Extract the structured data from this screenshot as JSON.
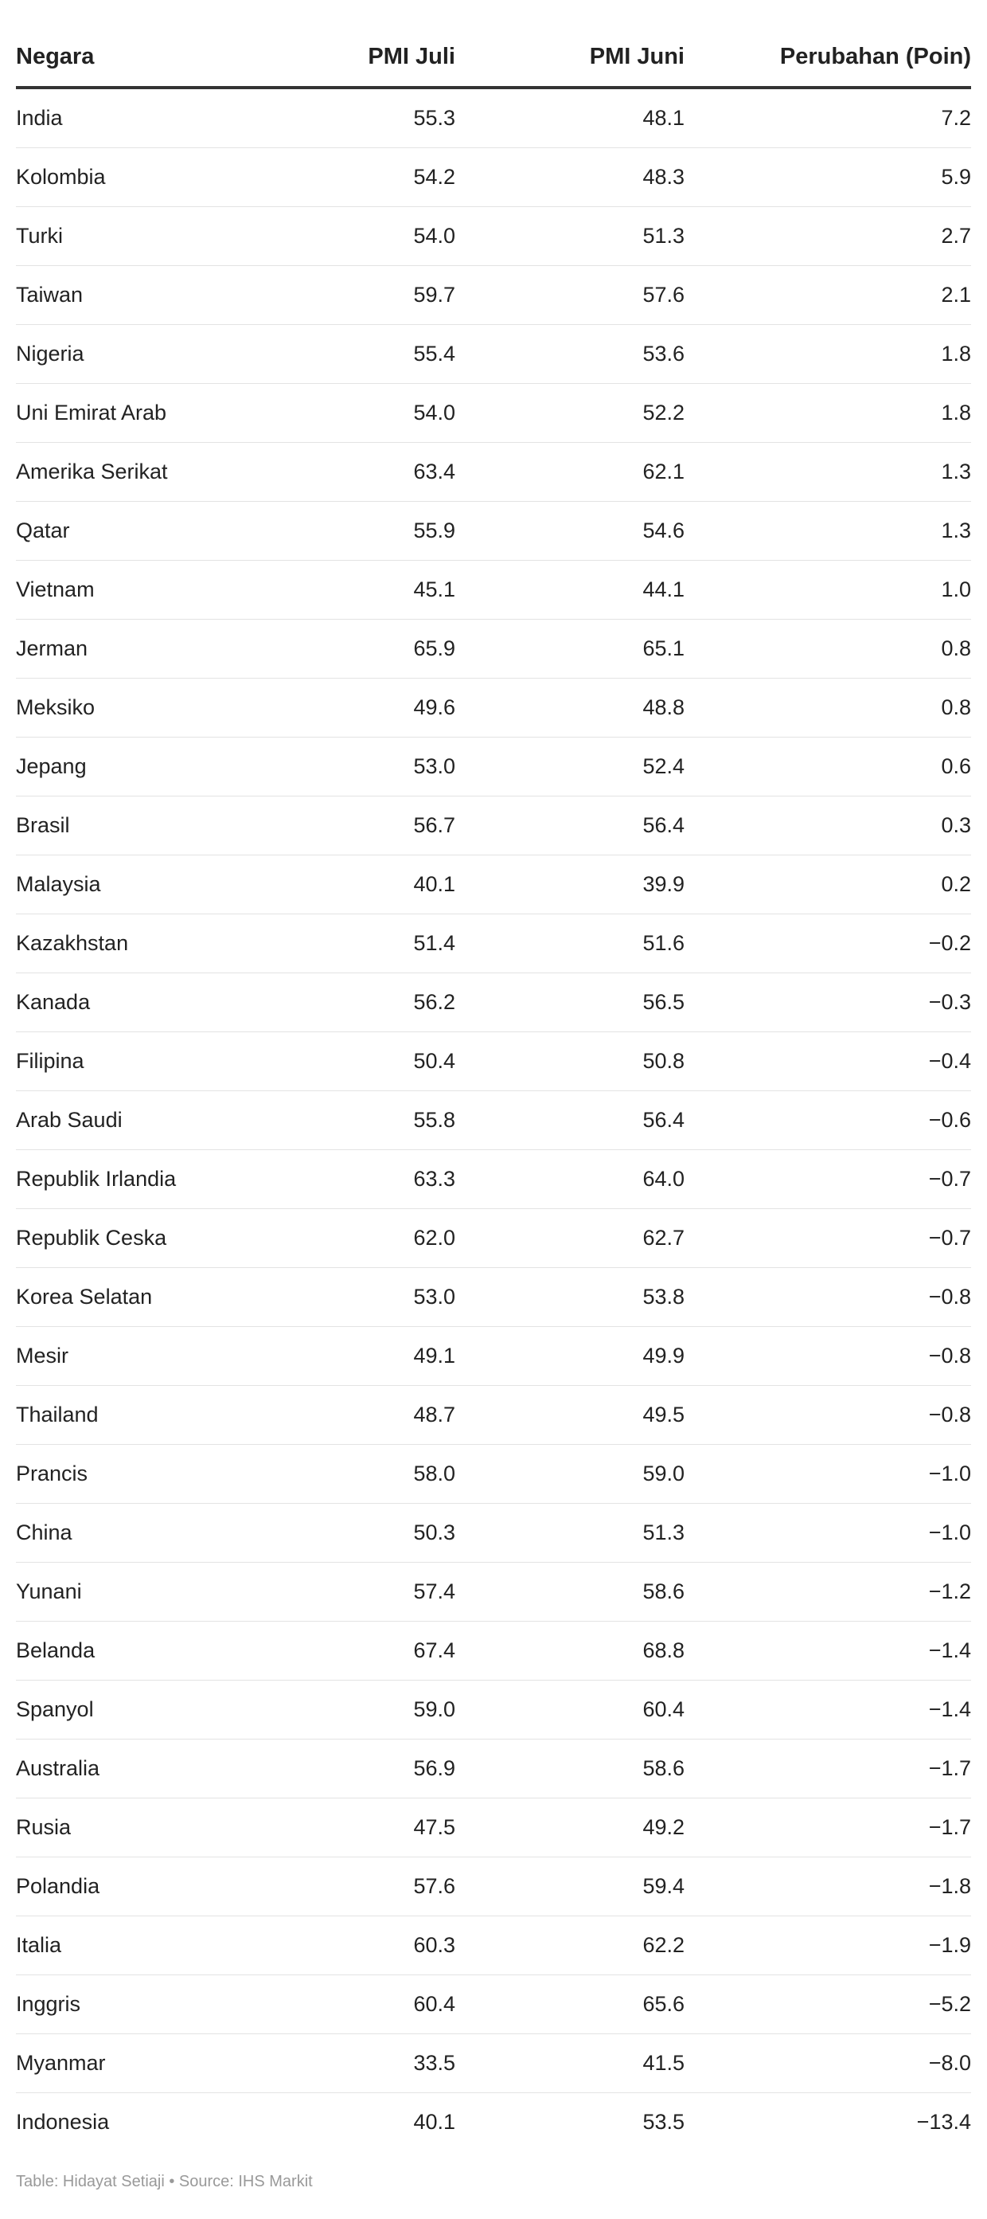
{
  "chart_data": {
    "type": "table",
    "columns": [
      "Negara",
      "PMI Juli",
      "PMI Juni",
      "Perubahan (Poin)"
    ],
    "rows": [
      [
        "India",
        "55.3",
        "48.1",
        "7.2"
      ],
      [
        "Kolombia",
        "54.2",
        "48.3",
        "5.9"
      ],
      [
        "Turki",
        "54.0",
        "51.3",
        "2.7"
      ],
      [
        "Taiwan",
        "59.7",
        "57.6",
        "2.1"
      ],
      [
        "Nigeria",
        "55.4",
        "53.6",
        "1.8"
      ],
      [
        "Uni Emirat Arab",
        "54.0",
        "52.2",
        "1.8"
      ],
      [
        "Amerika Serikat",
        "63.4",
        "62.1",
        "1.3"
      ],
      [
        "Qatar",
        "55.9",
        "54.6",
        "1.3"
      ],
      [
        "Vietnam",
        "45.1",
        "44.1",
        "1.0"
      ],
      [
        "Jerman",
        "65.9",
        "65.1",
        "0.8"
      ],
      [
        "Meksiko",
        "49.6",
        "48.8",
        "0.8"
      ],
      [
        "Jepang",
        "53.0",
        "52.4",
        "0.6"
      ],
      [
        "Brasil",
        "56.7",
        "56.4",
        "0.3"
      ],
      [
        "Malaysia",
        "40.1",
        "39.9",
        "0.2"
      ],
      [
        "Kazakhstan",
        "51.4",
        "51.6",
        "−0.2"
      ],
      [
        "Kanada",
        "56.2",
        "56.5",
        "−0.3"
      ],
      [
        "Filipina",
        "50.4",
        "50.8",
        "−0.4"
      ],
      [
        "Arab Saudi",
        "55.8",
        "56.4",
        "−0.6"
      ],
      [
        "Republik Irlandia",
        "63.3",
        "64.0",
        "−0.7"
      ],
      [
        "Republik Ceska",
        "62.0",
        "62.7",
        "−0.7"
      ],
      [
        "Korea Selatan",
        "53.0",
        "53.8",
        "−0.8"
      ],
      [
        "Mesir",
        "49.1",
        "49.9",
        "−0.8"
      ],
      [
        "Thailand",
        "48.7",
        "49.5",
        "−0.8"
      ],
      [
        "Prancis",
        "58.0",
        "59.0",
        "−1.0"
      ],
      [
        "China",
        "50.3",
        "51.3",
        "−1.0"
      ],
      [
        "Yunani",
        "57.4",
        "58.6",
        "−1.2"
      ],
      [
        "Belanda",
        "67.4",
        "68.8",
        "−1.4"
      ],
      [
        "Spanyol",
        "59.0",
        "60.4",
        "−1.4"
      ],
      [
        "Australia",
        "56.9",
        "58.6",
        "−1.7"
      ],
      [
        "Rusia",
        "47.5",
        "49.2",
        "−1.7"
      ],
      [
        "Polandia",
        "57.6",
        "59.4",
        "−1.8"
      ],
      [
        "Italia",
        "60.3",
        "62.2",
        "−1.9"
      ],
      [
        "Inggris",
        "60.4",
        "65.6",
        "−5.2"
      ],
      [
        "Myanmar",
        "33.5",
        "41.5",
        "−8.0"
      ],
      [
        "Indonesia",
        "40.1",
        "53.5",
        "−13.4"
      ]
    ],
    "footer": "Table: Hidayat Setiaji • Source: IHS Markit"
  },
  "colors": {
    "text": "#222222",
    "header_rule": "#333333",
    "row_divider": "#e3e3e3",
    "footer_text": "#999999"
  }
}
